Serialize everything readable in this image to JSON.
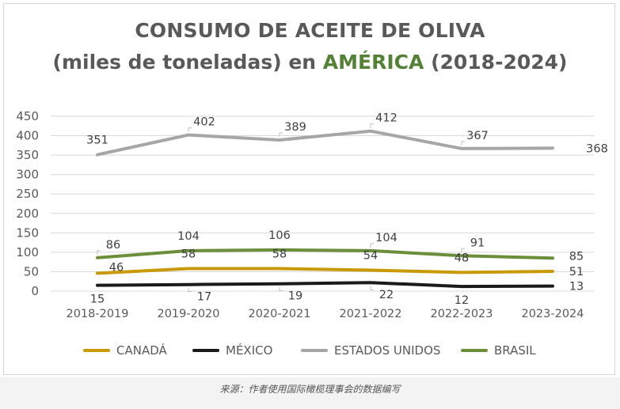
{
  "title_line1": "CONSUMO DE ACEITE DE OLIVA",
  "title_line2_pre": "(miles de toneladas) en ",
  "title_line2_accent": "AMÉRICA",
  "title_line2_post": " (2018-2024)",
  "source": "来源：作者使用国际橄榄理事会的数据编写",
  "colors": {
    "canada": "#c99a06",
    "mexico": "#1a1a1a",
    "estados_unidos": "#a6a6a6",
    "brasil": "#6b8e3a",
    "title_accent": "#538135"
  },
  "chart_data": {
    "type": "line",
    "title": "CONSUMO DE ACEITE DE OLIVA (miles de toneladas) en AMÉRICA (2018-2024)",
    "categories": [
      "2018-2019",
      "2019-2020",
      "2020-2021",
      "2021-2022",
      "2022-2023",
      "2023-2024"
    ],
    "ylim": [
      0,
      450
    ],
    "yticks": [
      "0",
      "50",
      "100",
      "150",
      "200",
      "250",
      "300",
      "350",
      "400",
      "450"
    ],
    "grid": true,
    "legend_position": "bottom",
    "series": [
      {
        "name": "CANADÁ",
        "color": "#c99a06",
        "values": [
          46,
          58,
          58,
          54,
          48,
          51
        ]
      },
      {
        "name": "MÉXICO",
        "color": "#1a1a1a",
        "values": [
          15,
          17,
          19,
          22,
          12,
          13
        ]
      },
      {
        "name": "ESTADOS UNIDOS",
        "color": "#a6a6a6",
        "values": [
          351,
          402,
          389,
          412,
          367,
          368
        ]
      },
      {
        "name": "BRASIL",
        "color": "#6b8e3a",
        "values": [
          86,
          104,
          106,
          104,
          91,
          85
        ]
      }
    ]
  }
}
